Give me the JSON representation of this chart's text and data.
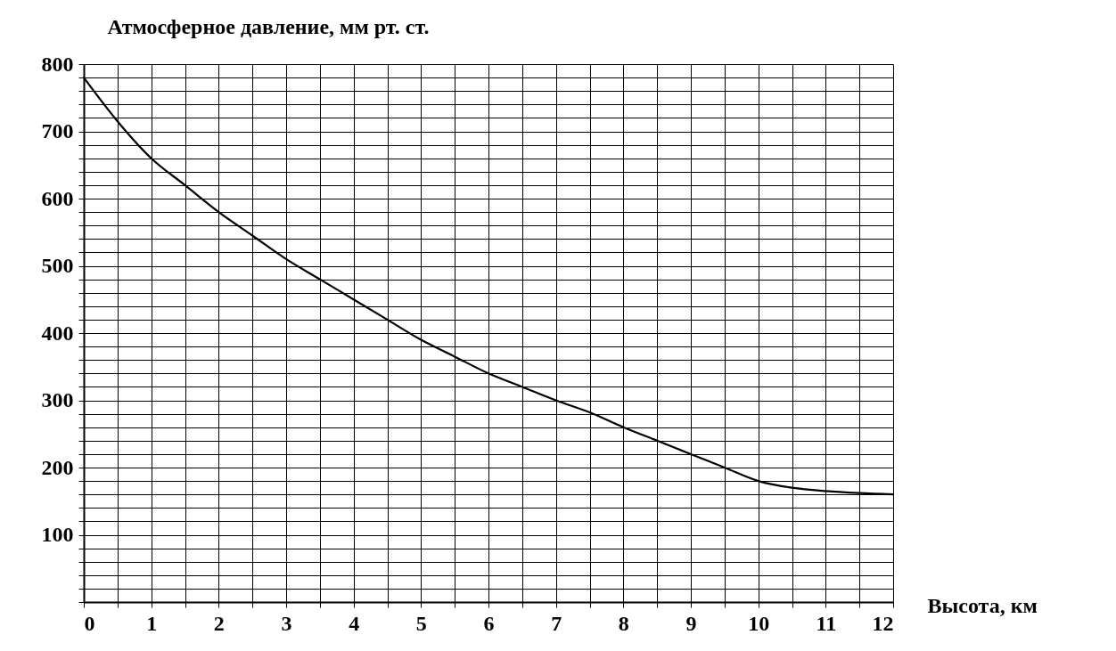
{
  "chart_data": {
    "type": "line",
    "xlabel": "Высота, км",
    "ylabel": "Атмосферное давление, мм рт. ст.",
    "x": [
      0,
      0.5,
      1,
      1.5,
      2,
      2.5,
      3,
      3.5,
      4,
      4.5,
      5,
      5.5,
      6,
      6.5,
      7,
      7.5,
      8,
      8.5,
      9,
      9.5,
      10,
      10.5,
      11,
      11.5,
      12
    ],
    "series": [
      {
        "color": "#000000",
        "values": [
          780,
          715,
          660,
          620,
          580,
          545,
          510,
          480,
          450,
          420,
          390,
          365,
          340,
          320,
          300,
          282,
          260,
          240,
          220,
          200,
          180,
          170,
          165,
          162,
          160
        ]
      }
    ],
    "xlim": [
      0,
      12
    ],
    "xticks": [
      0,
      {
        "value": 0.5,
        "label": null
      },
      1,
      {
        "value": 1.5,
        "label": null
      },
      2,
      {
        "value": 2.5,
        "label": null
      },
      3,
      {
        "value": 3.5,
        "label": null
      },
      4,
      {
        "value": 4.5,
        "label": null
      },
      5,
      {
        "value": 5.5,
        "label": null
      },
      6,
      {
        "value": 6.5,
        "label": null
      },
      7,
      {
        "value": 7.5,
        "label": null
      },
      8,
      {
        "value": 8.5,
        "label": null
      },
      9,
      {
        "value": 9.5,
        "label": null
      },
      10,
      {
        "value": 10.5,
        "label": null
      },
      11,
      {
        "value": 11.5,
        "label": null
      },
      12
    ],
    "ylim": [
      0,
      800
    ],
    "yticks": [
      {
        "value": 0,
        "label": null
      },
      {
        "value": 20,
        "label": null
      },
      {
        "value": 40,
        "label": null
      },
      {
        "value": 60,
        "label": null
      },
      {
        "value": 80,
        "label": null
      },
      100,
      {
        "value": 120,
        "label": null
      },
      {
        "value": 140,
        "label": null
      },
      {
        "value": 160,
        "label": null
      },
      {
        "value": 180,
        "label": null
      },
      200,
      {
        "value": 220,
        "label": null
      },
      {
        "value": 240,
        "label": null
      },
      {
        "value": 260,
        "label": null
      },
      {
        "value": 280,
        "label": null
      },
      300,
      {
        "value": 320,
        "label": null
      },
      {
        "value": 340,
        "label": null
      },
      {
        "value": 360,
        "label": null
      },
      {
        "value": 380,
        "label": null
      },
      400,
      {
        "value": 420,
        "label": null
      },
      {
        "value": 440,
        "label": null
      },
      {
        "value": 460,
        "label": null
      },
      {
        "value": 480,
        "label": null
      },
      500,
      {
        "value": 520,
        "label": null
      },
      {
        "value": 540,
        "label": null
      },
      {
        "value": 560,
        "label": null
      },
      {
        "value": 580,
        "label": null
      },
      600,
      {
        "value": 620,
        "label": null
      },
      {
        "value": 640,
        "label": null
      },
      {
        "value": 660,
        "label": null
      },
      {
        "value": 680,
        "label": null
      },
      700,
      {
        "value": 720,
        "label": null
      },
      {
        "value": 740,
        "label": null
      },
      {
        "value": 760,
        "label": null
      },
      {
        "value": 780,
        "label": null
      },
      800
    ],
    "grid": true,
    "line_style": "solid"
  }
}
